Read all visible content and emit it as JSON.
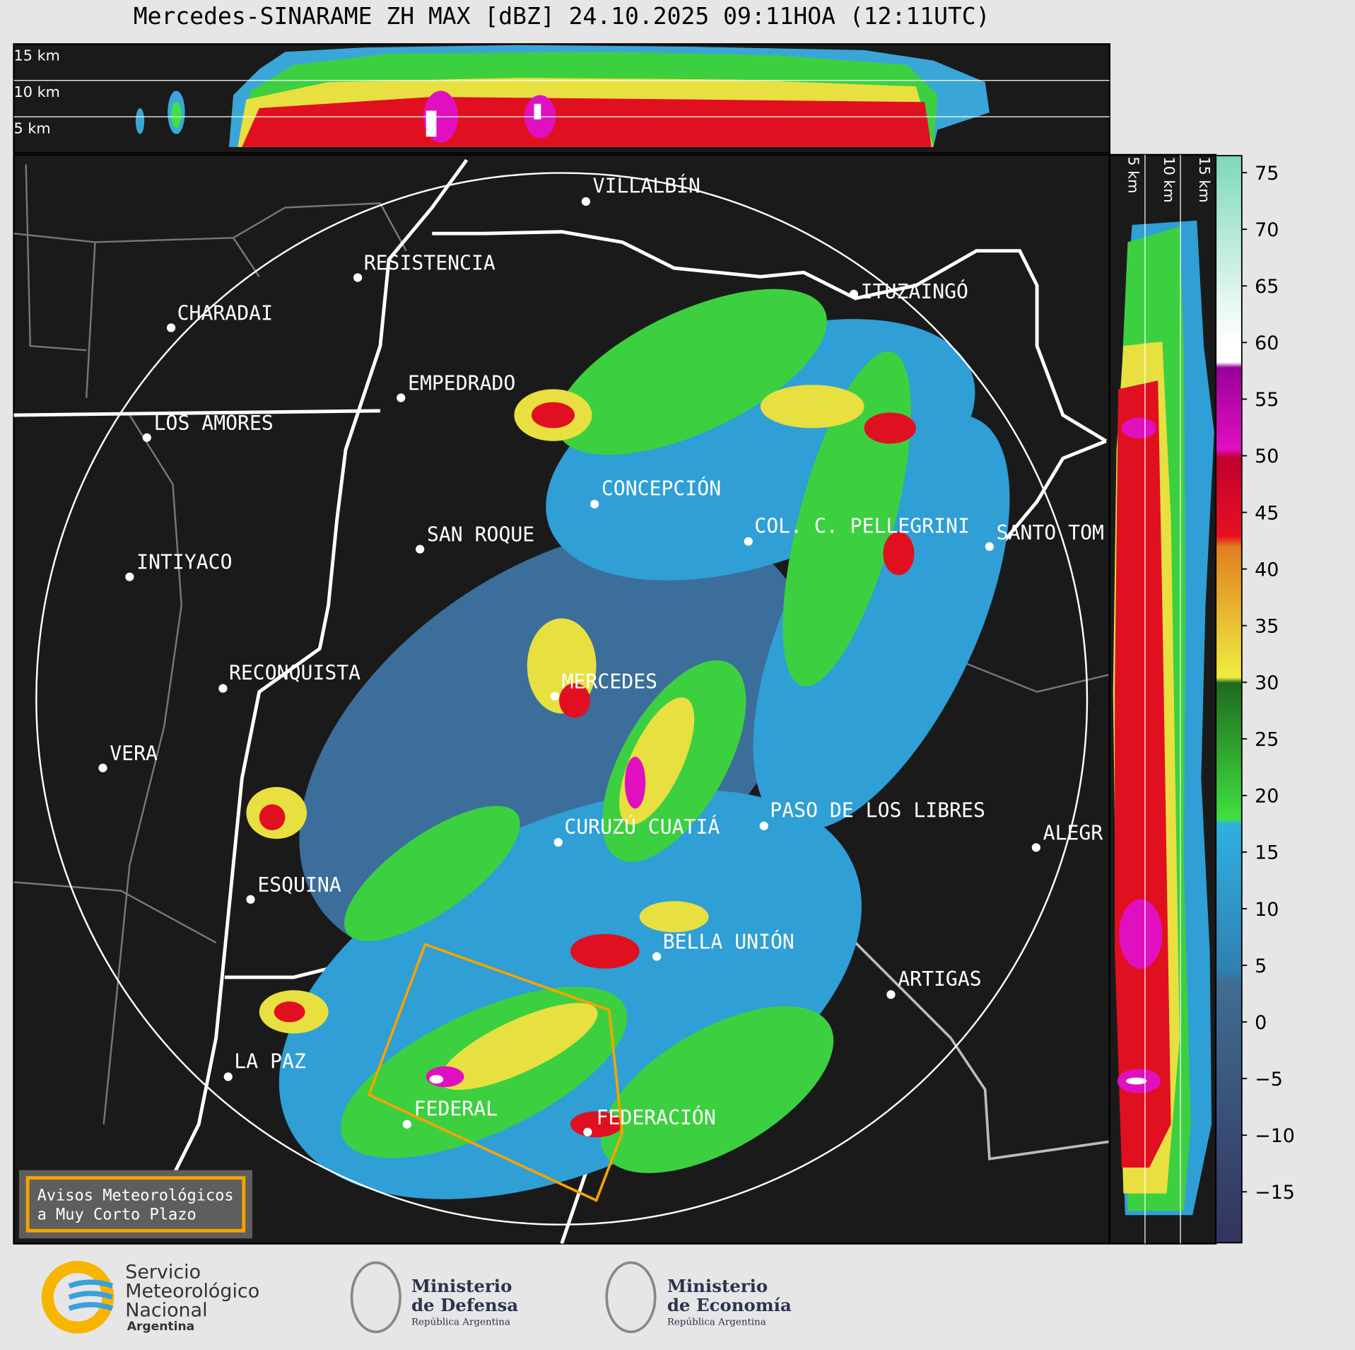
{
  "title": "Mercedes-SINARAME ZH MAX [dBZ] 24.10.2025 09:11HOA (12:11UTC)",
  "cross_section_top": {
    "height_labels": [
      "15 km",
      "10 km",
      "5 km"
    ]
  },
  "cross_section_right": {
    "height_labels": [
      "5 km",
      "10 km",
      "15 km"
    ]
  },
  "cities": [
    "VILLALBÍN",
    "RESISTENCIA",
    "CHARADAI",
    "EMPEDRADO",
    "LOS AMORES",
    "CONCEPCIÓN",
    "SAN ROQUE",
    "COL. C. PELLEGRINI",
    "SANTO TOM",
    "ITUZAINGÓ",
    "INTIYACO",
    "MERCEDES",
    "RECONQUISTA",
    "VERA",
    "CURUZÚ CUATIÁ",
    "PASO DE LOS LIBRES",
    "ALEGR",
    "ESQUINA",
    "BELLA UNIÓN",
    "ARTIGAS",
    "LA PAZ",
    "FEDERAL",
    "FEDERACIÓN"
  ],
  "colorbar": {
    "lim": [
      -19.5,
      76.5
    ],
    "ticks": [
      75,
      70,
      65,
      60,
      55,
      50,
      45,
      40,
      35,
      30,
      25,
      20,
      15,
      10,
      5,
      0,
      {
        "value": -5,
        "label": "−5"
      },
      {
        "value": -10,
        "label": "−10"
      },
      {
        "value": -15,
        "label": "−15"
      }
    ]
  },
  "warning_box": {
    "lines": [
      "Avisos Meteorológicos",
      "a Muy Corto Plazo"
    ]
  },
  "footer": {
    "smn": {
      "lines": [
        "Servicio",
        "Meteorológico",
        "Nacional"
      ],
      "country": "Argentina"
    },
    "defensa": {
      "lines": [
        "Ministerio",
        "de Defensa"
      ],
      "country": "República Argentina"
    },
    "economia": {
      "lines": [
        "Ministerio",
        "de Economía"
      ],
      "country": "República Argentina"
    }
  }
}
